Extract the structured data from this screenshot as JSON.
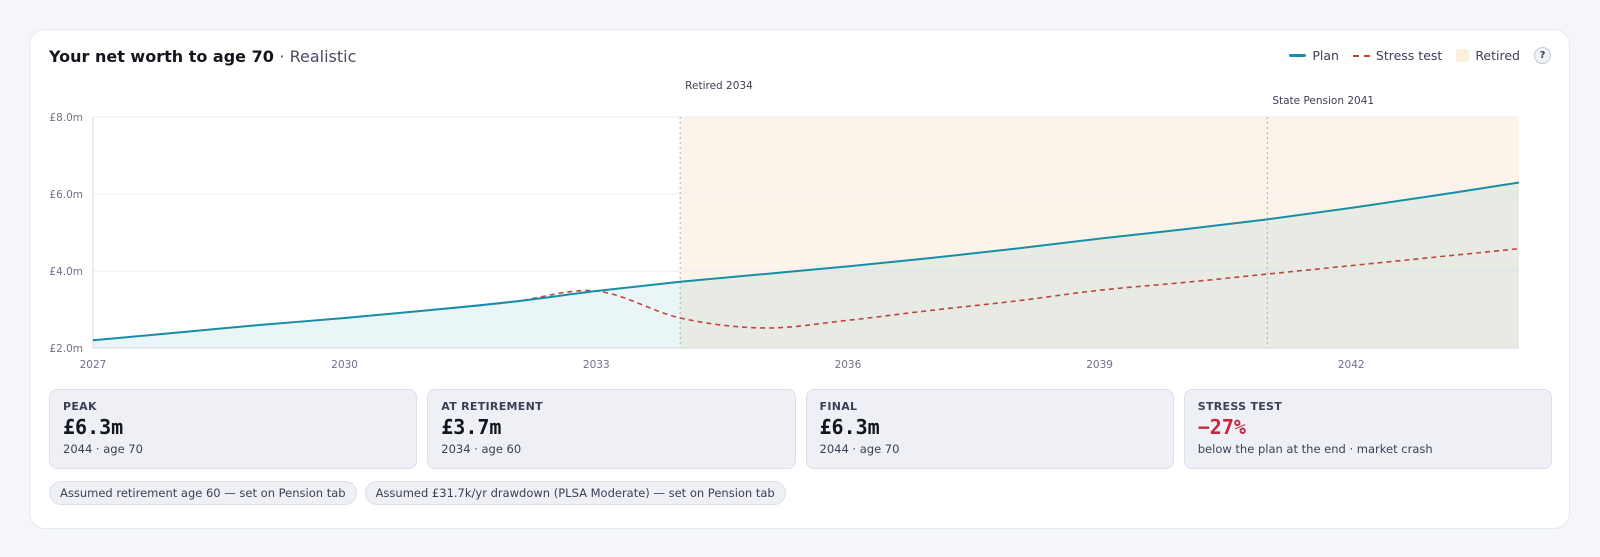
{
  "header": {
    "title": "Your net worth to age 70",
    "subtitle": "· Realistic",
    "help_label": "?"
  },
  "legend": {
    "plan": "Plan",
    "stress": "Stress test",
    "retired": "Retired"
  },
  "colors": {
    "plan": "#168fa6",
    "stress": "#c0463a",
    "retired_band": "#fcf4ea",
    "plan_fill": "#e6f2f4",
    "accent_negative": "#c7273d"
  },
  "chart_data": {
    "type": "line",
    "x": [
      2027,
      2028,
      2029,
      2030,
      2031,
      2032,
      2033,
      2034,
      2035,
      2036,
      2037,
      2038,
      2039,
      2040,
      2041,
      2042,
      2043,
      2044
    ],
    "series": [
      {
        "name": "Plan",
        "style": "solid",
        "values": [
          2.2,
          2.4,
          2.6,
          2.78,
          2.98,
          3.2,
          3.48,
          3.72,
          3.92,
          4.12,
          4.34,
          4.58,
          4.84,
          5.08,
          5.34,
          5.64,
          5.96,
          6.3
        ]
      },
      {
        "name": "Stress test",
        "style": "dashed",
        "values": [
          2.2,
          2.4,
          2.6,
          2.78,
          2.98,
          3.2,
          3.48,
          2.78,
          2.52,
          2.72,
          2.98,
          3.22,
          3.5,
          3.7,
          3.92,
          4.14,
          4.36,
          4.58
        ]
      }
    ],
    "ylim": [
      2.0,
      8.0
    ],
    "xlim": [
      2027,
      2044
    ],
    "y_ticks": [
      {
        "value": 8.0,
        "label": "£8.0m"
      },
      {
        "value": 6.0,
        "label": "£6.0m"
      },
      {
        "value": 4.0,
        "label": "£4.0m"
      },
      {
        "value": 2.0,
        "label": "£2.0m"
      }
    ],
    "x_ticks": [
      {
        "value": 2027,
        "label": "2027"
      },
      {
        "value": 2030,
        "label": "2030"
      },
      {
        "value": 2033,
        "label": "2033"
      },
      {
        "value": 2036,
        "label": "2036"
      },
      {
        "value": 2039,
        "label": "2039"
      },
      {
        "value": 2042,
        "label": "2042"
      }
    ],
    "shaded_region": {
      "from": 2034,
      "to": 2044,
      "label": "Retired"
    },
    "annotations": [
      {
        "x": 2034,
        "label": "Retired 2034"
      },
      {
        "x": 2041,
        "label": "State Pension 2041"
      }
    ],
    "grid": true
  },
  "stats": [
    {
      "label": "PEAK",
      "value": "£6.3m",
      "note": "2044 · age 70",
      "negative": false
    },
    {
      "label": "AT RETIREMENT",
      "value": "£3.7m",
      "note": "2034 · age 60",
      "negative": false
    },
    {
      "label": "FINAL",
      "value": "£6.3m",
      "note": "2044 · age 70",
      "negative": false
    },
    {
      "label": "STRESS TEST",
      "value": "−27%",
      "note": "below the plan at the end · market crash",
      "negative": true
    }
  ],
  "pills": [
    "Assumed retirement age 60 — set on Pension tab",
    "Assumed £31.7k/yr drawdown (PLSA Moderate) — set on Pension tab"
  ]
}
